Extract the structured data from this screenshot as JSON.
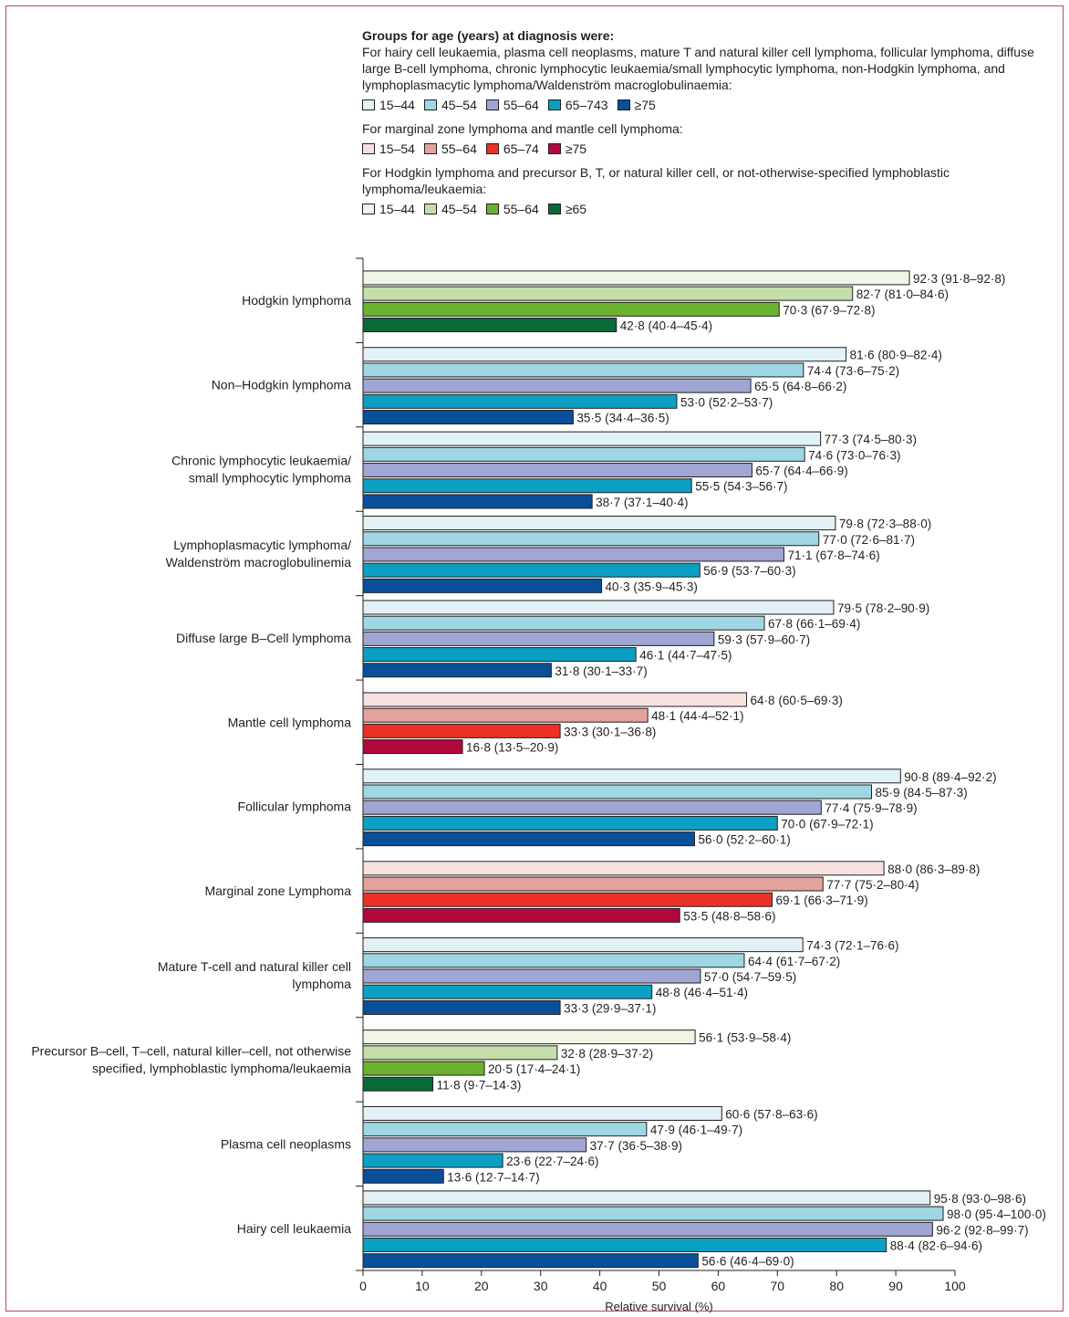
{
  "chart_data": {
    "type": "bar",
    "orientation": "horizontal",
    "xlabel": "Relative survival (%)",
    "xlim": [
      0,
      100
    ],
    "xticks": [
      "0",
      "10",
      "20",
      "30",
      "40",
      "50",
      "60",
      "70",
      "80",
      "90",
      "100"
    ],
    "grid": false,
    "legend": {
      "title": "Groups for age (years) at diagnosis were:",
      "groups": [
        {
          "description": "For hairy cell leukaemia, plasma cell neoplasms, mature T and natural killer cell lymphoma, follicular lymphoma, diffuse large B-cell lymphoma, chronic lymphocytic leukaemia/small lymphocytic lymphoma, non-Hodgkin lymphoma, and lymphoplasmacytic lymphoma/Waldenström macroglobulinaemia:",
          "palette": "blue",
          "labels": [
            "15–44",
            "45–54",
            "55–64",
            "65–743",
            "≥75"
          ]
        },
        {
          "description": "For marginal zone lymphoma and mantle cell lymphoma:",
          "palette": "red",
          "labels": [
            "15–54",
            "55–64",
            "65–74",
            "≥75"
          ]
        },
        {
          "description": "For Hodgkin lymphoma and precursor B, T, or natural killer cell, or not-otherwise-specified lymphoblastic lymphoma/leukaemia:",
          "palette": "green",
          "labels": [
            "15–44",
            "45–54",
            "55–64",
            "≥65"
          ]
        }
      ]
    },
    "palettes": {
      "blue": [
        "#e1f1f6",
        "#9fd6e4",
        "#9fa6d3",
        "#0ba0c3",
        "#0a4f9a"
      ],
      "red": [
        "#f7e1de",
        "#e3a29b",
        "#eb3126",
        "#b2083c"
      ],
      "green": [
        "#eff6e5",
        "#c5dfaa",
        "#6ab22f",
        "#0b6838"
      ]
    },
    "categories": [
      {
        "name": [
          "Hodgkin lymphoma"
        ],
        "palette": "green",
        "values": [
          92.3,
          82.7,
          70.3,
          42.8
        ],
        "labels": [
          "92·3 (91·8–92·8)",
          "82·7 (81·0–84·6)",
          "70·3 (67·9–72·8)",
          "42·8 (40·4–45·4)"
        ]
      },
      {
        "name": [
          "Non–Hodgkin lymphoma"
        ],
        "palette": "blue",
        "values": [
          81.6,
          74.4,
          65.5,
          53.0,
          35.5
        ],
        "labels": [
          "81·6 (80·9–82·4)",
          "74·4 (73·6–75·2)",
          "65·5 (64·8–66·2)",
          "53·0 (52·2–53·7)",
          "35·5 (34·4–36·5)"
        ]
      },
      {
        "name": [
          "Chronic lymphocytic leukaemia/",
          "small lymphocytic lymphoma"
        ],
        "palette": "blue",
        "values": [
          77.3,
          74.6,
          65.7,
          55.5,
          38.7
        ],
        "labels": [
          "77·3 (74·5–80·3)",
          "74·6 (73·0–76·3)",
          "65·7 (64·4–66·9)",
          "55·5 (54·3–56·7)",
          "38·7 (37·1–40·4)"
        ]
      },
      {
        "name": [
          "Lymphoplasmacytic lymphoma/",
          "Waldenström macroglobulinemia"
        ],
        "palette": "blue",
        "values": [
          79.8,
          77.0,
          71.1,
          56.9,
          40.3
        ],
        "labels": [
          "79·8 (72·3–88·0)",
          "77·0 (72·6–81·7)",
          "71·1 (67·8–74·6)",
          "56·9 (53·7–60·3)",
          "40·3 (35·9–45·3)"
        ]
      },
      {
        "name": [
          "Diffuse large B–Cell lymphoma"
        ],
        "palette": "blue",
        "values": [
          79.5,
          67.8,
          59.3,
          46.1,
          31.8
        ],
        "labels": [
          "79·5 (78·2–90·9)",
          "67·8 (66·1–69·4)",
          "59·3 (57·9–60·7)",
          "46·1 (44·7–47·5)",
          "31·8 (30·1–33·7)"
        ]
      },
      {
        "name": [
          "Mantle cell lymphoma"
        ],
        "palette": "red",
        "values": [
          64.8,
          48.1,
          33.3,
          16.8
        ],
        "labels": [
          "64·8 (60·5–69·3)",
          "48·1 (44·4–52·1)",
          "33·3 (30·1–36·8)",
          "16·8 (13·5–20·9)"
        ]
      },
      {
        "name": [
          "Follicular lymphoma"
        ],
        "palette": "blue",
        "values": [
          90.8,
          85.9,
          77.4,
          70.0,
          56.0
        ],
        "labels": [
          "90·8 (89·4–92·2)",
          "85·9 (84·5–87·3)",
          "77·4 (75·9–78·9)",
          "70·0 (67·9–72·1)",
          "56·0 (52·2–60·1)"
        ]
      },
      {
        "name": [
          "Marginal zone Lymphoma"
        ],
        "palette": "red",
        "values": [
          88.0,
          77.7,
          69.1,
          53.5
        ],
        "labels": [
          "88·0 (86·3–89·8)",
          "77·7 (75·2–80·4)",
          "69·1 (66·3–71·9)",
          "53·5 (48·8–58·6)"
        ]
      },
      {
        "name": [
          "Mature T-cell and natural killer cell",
          "lymphoma"
        ],
        "palette": "blue",
        "values": [
          74.3,
          64.4,
          57.0,
          48.8,
          33.3
        ],
        "labels": [
          "74·3 (72·1–76·6)",
          "64·4 (61·7–67·2)",
          "57·0 (54·7–59·5)",
          "48·8 (46·4–51·4)",
          "33·3 (29·9–37·1)"
        ]
      },
      {
        "name": [
          "Precursor B–cell, T–cell, natural killer–cell, not otherwise",
          "specified, lymphoblastic lymphoma/leukaemia"
        ],
        "palette": "green",
        "values": [
          56.1,
          32.8,
          20.5,
          11.8
        ],
        "labels": [
          "56·1 (53·9–58·4)",
          "32·8 (28·9–37·2)",
          "20·5 (17·4–24·1)",
          "11·8 (9·7–14·3)"
        ]
      },
      {
        "name": [
          "Plasma cell neoplasms"
        ],
        "palette": "blue",
        "values": [
          60.6,
          47.9,
          37.7,
          23.6,
          13.6
        ],
        "labels": [
          "60·6 (57·8–63·6)",
          "47·9 (46·1–49·7)",
          "37·7 (36·5–38·9)",
          "23·6 (22·7–24·6)",
          "13·6 (12·7–14·7)"
        ]
      },
      {
        "name": [
          "Hairy cell leukaemia"
        ],
        "palette": "blue",
        "values": [
          95.8,
          98.0,
          96.2,
          88.4,
          56.6
        ],
        "labels": [
          "95·8 (93·0–98·6)",
          "98·0 (95·4–100·0)",
          "96·2 (92·8–99·7)",
          "88·4 (82·6–94·6)",
          "56·6 (46·4–69·0)"
        ]
      }
    ]
  }
}
